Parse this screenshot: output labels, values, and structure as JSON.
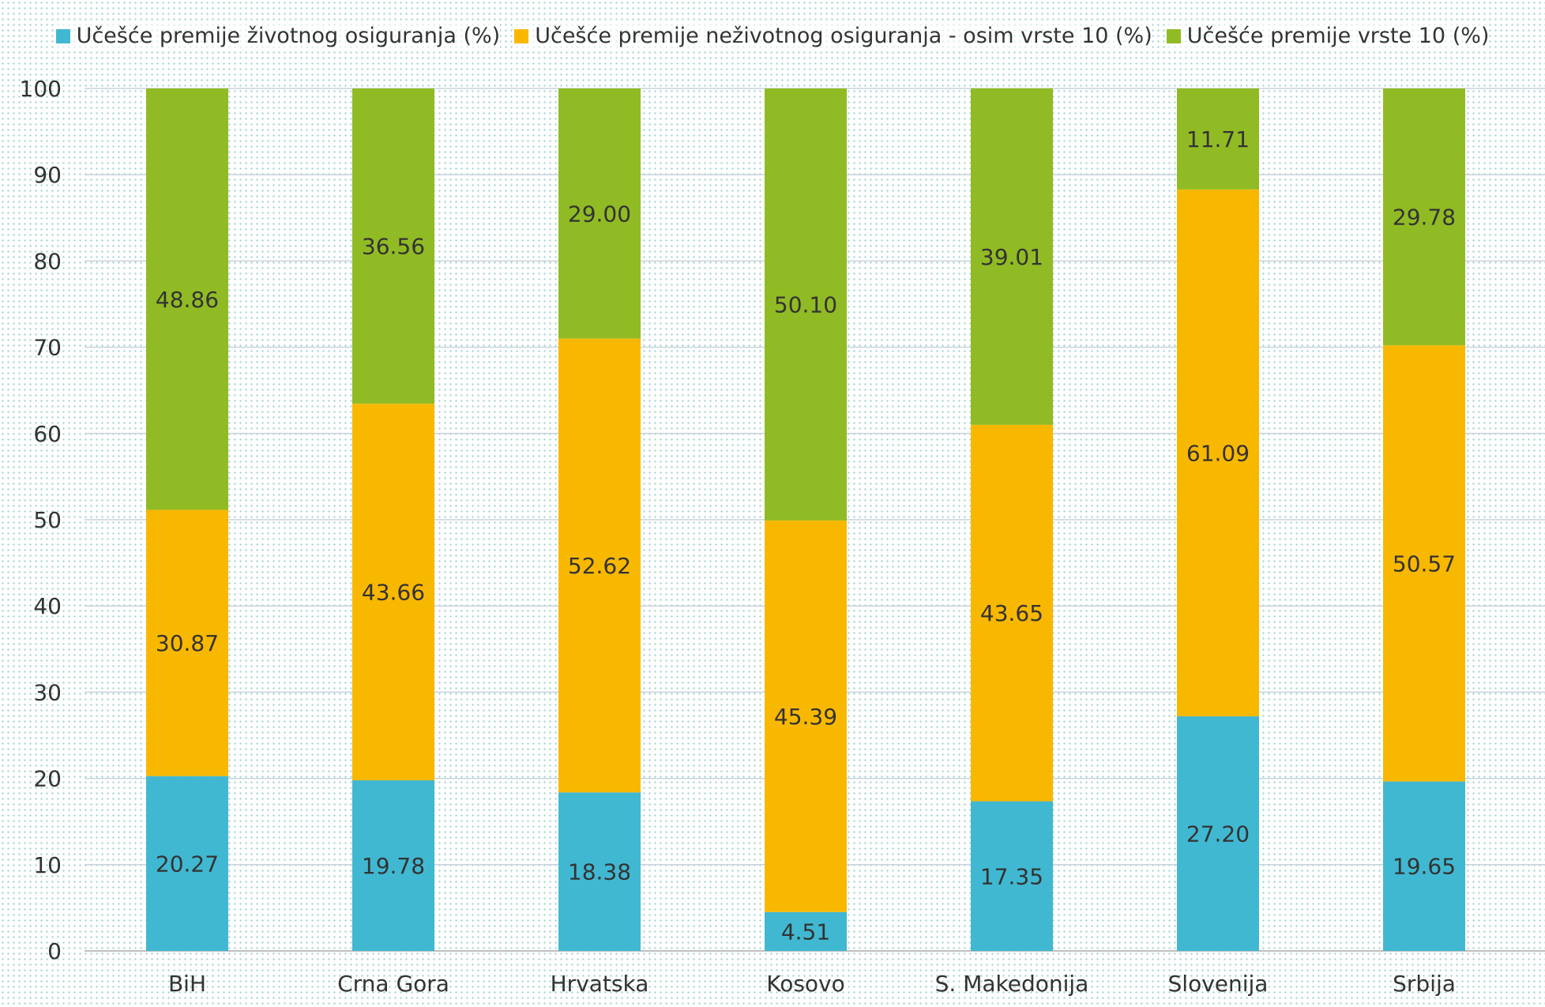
{
  "chart_data": {
    "type": "bar",
    "stacked": true,
    "categories": [
      "BiH",
      "Crna Gora",
      "Hrvatska",
      "Kosovo",
      "S. Makedonija",
      "Slovenija",
      "Srbija"
    ],
    "series": [
      {
        "name": "Učešće premije životnog osiguranja (%)",
        "color": "#41b8d1",
        "values": [
          20.27,
          19.78,
          18.38,
          4.51,
          17.35,
          27.2,
          19.65
        ],
        "labels": [
          "20.27",
          "19.78",
          "18.38",
          "4.51",
          "17.35",
          "27.20",
          "19.65"
        ]
      },
      {
        "name": "Učešće premije neživotnog osiguranja - osim vrste 10 (%)",
        "color": "#f9b800",
        "values": [
          30.87,
          43.66,
          52.62,
          45.39,
          43.65,
          61.09,
          50.57
        ],
        "labels": [
          "30.87",
          "43.66",
          "52.62",
          "45.39",
          "43.65",
          "61.09",
          "50.57"
        ]
      },
      {
        "name": "Učešće premije vrste 10 (%)",
        "color": "#91bb24",
        "values": [
          48.86,
          36.56,
          29.0,
          50.1,
          39.01,
          11.71,
          29.78
        ],
        "labels": [
          "48.86",
          "36.56",
          "29.00",
          "50.10",
          "39.01",
          "11.71",
          "29.78"
        ]
      }
    ],
    "ylim": [
      0,
      100
    ],
    "yticks": [
      "0",
      "10",
      "20",
      "30",
      "40",
      "50",
      "60",
      "70",
      "80",
      "90",
      "100"
    ],
    "grid": true,
    "legend_position": "top"
  }
}
